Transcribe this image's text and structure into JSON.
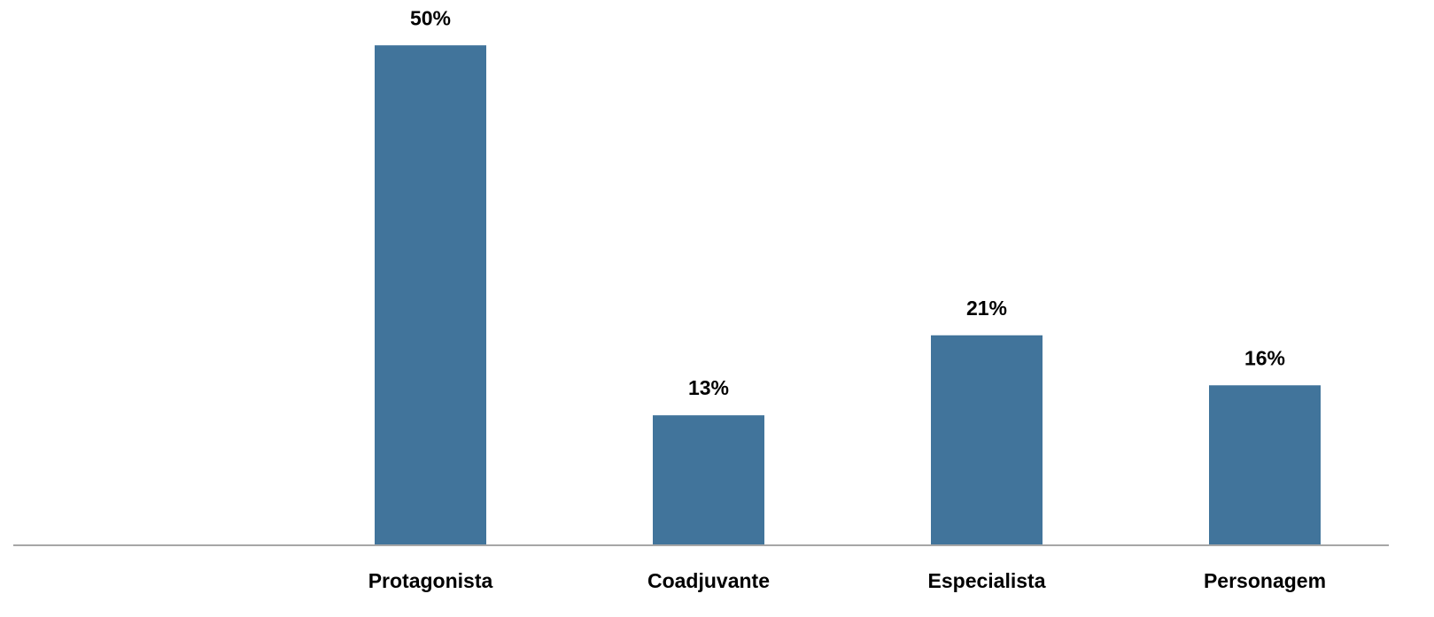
{
  "chart_data": {
    "type": "bar",
    "categories": [
      null,
      "Protagonista",
      "Coadjuvante",
      "Especialista",
      "Personagem"
    ],
    "values": [
      null,
      50,
      13,
      21,
      16
    ],
    "value_labels": [
      null,
      "50%",
      "13%",
      "21%",
      "16%"
    ],
    "color": "#41749b",
    "ylim": [
      0,
      54
    ]
  }
}
